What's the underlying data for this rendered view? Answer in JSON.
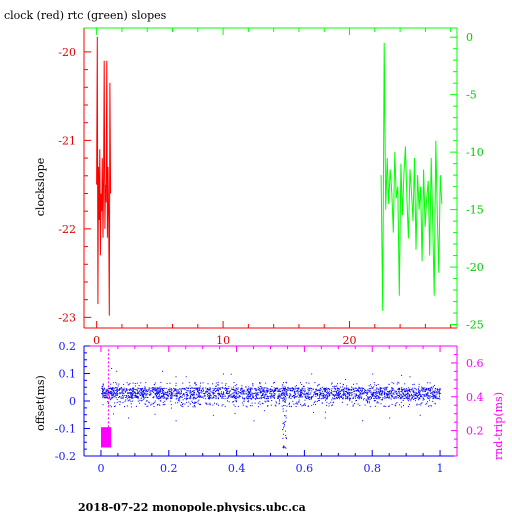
{
  "title": "clock (red) rtc (green) slopes",
  "footer": "2018-07-22  monopole.physics.ubc.ca",
  "colors": {
    "clock": "#ff0000",
    "rtc": "#00ff00",
    "offset": "#0000ff",
    "rndtrip": "#ff00ff",
    "frame_top_left": "#ff0000",
    "frame_top_right": "#00ff00",
    "frame_bottom_left": "#0000ff",
    "frame_bottom_right": "#ff00ff"
  },
  "chart_data": [
    {
      "id": "slopes",
      "type": "line",
      "title": "clock (red) rtc (green) slopes",
      "ylabel": "clockslope",
      "xlim": [
        -1,
        28.5
      ],
      "ylim": [
        -23.12,
        -19.73
      ],
      "y2lim": [
        -25.3,
        0.8
      ],
      "xticks": [
        "0",
        "10",
        "20"
      ],
      "yticks": [
        "-20",
        "-21",
        "-22",
        "-23"
      ],
      "y2ticks": [
        "0",
        "-5",
        "-10",
        "-15",
        "-20",
        "-25"
      ],
      "grid": false,
      "series": [
        {
          "name": "clock",
          "axis": "left",
          "x": [
            0.0,
            0.05,
            0.1,
            0.15,
            0.2,
            0.25,
            0.3,
            0.35,
            0.4,
            0.45,
            0.5,
            0.55,
            0.6,
            0.65,
            0.7,
            0.75,
            0.8,
            0.85,
            0.9,
            0.95,
            1.0,
            1.05,
            1.1
          ],
          "y": [
            -21.5,
            -19.83,
            -22.85,
            -21.3,
            -21.9,
            -21.1,
            -22.3,
            -21.6,
            -21.8,
            -21.2,
            -22.1,
            -21.4,
            -20.1,
            -22.0,
            -21.5,
            -21.7,
            -20.1,
            -22.1,
            -21.3,
            -21.9,
            -22.98,
            -20.35,
            -21.6
          ]
        },
        {
          "name": "rtc",
          "axis": "right",
          "x": [
            22.5,
            22.62,
            22.74,
            22.86,
            22.98,
            23.1,
            23.22,
            23.34,
            23.46,
            23.58,
            23.7,
            23.82,
            23.94,
            24.06,
            24.18,
            24.3,
            24.42,
            24.54,
            24.66,
            24.78,
            24.9,
            25.02,
            25.14,
            25.26,
            25.38,
            25.5,
            25.62,
            25.74,
            25.86,
            25.98,
            26.1,
            26.22,
            26.34,
            26.46,
            26.58,
            26.7,
            26.82,
            26.94,
            27.06,
            27.18,
            27.3
          ],
          "y": [
            -12.0,
            -23.8,
            -0.5,
            -15.0,
            -10.5,
            -14.5,
            -11.5,
            -13.5,
            -17.0,
            -10.0,
            -14.0,
            -13.0,
            -22.5,
            -11.0,
            -15.5,
            -12.0,
            -9.5,
            -14.0,
            -17.5,
            -11.5,
            -13.5,
            -16.0,
            -10.5,
            -18.5,
            -12.0,
            -15.0,
            -13.0,
            -19.5,
            -11.5,
            -16.5,
            -14.0,
            -12.5,
            -19.0,
            -10.5,
            -16.0,
            -22.5,
            -9.0,
            -15.5,
            -20.5,
            -12.0,
            -14.5
          ]
        }
      ]
    },
    {
      "id": "offset",
      "type": "scatter",
      "ylabel": "offset(ms)",
      "y2label": "rnd-trip(ms)",
      "xlim": [
        -0.05,
        1.05
      ],
      "ylim": [
        -0.2,
        0.2
      ],
      "y2lim": [
        0.05,
        0.7
      ],
      "xticks": [
        "0",
        "0.2",
        "0.4",
        "0.6",
        "0.8",
        "1"
      ],
      "yticks": [
        "0.2",
        "0.1",
        "0",
        "-0.1",
        "-0.2"
      ],
      "y2ticks": [
        "0.6",
        "0.4",
        "0.2"
      ],
      "grid": false,
      "series": [
        {
          "name": "offset",
          "axis": "left",
          "x_range": [
            0.0,
            1.0
          ],
          "band": [
            0.01,
            0.05
          ],
          "scatter_min": -0.05,
          "scatter_max": 0.1,
          "dip": {
            "x": 0.54,
            "min": -0.17,
            "max": 0.07
          },
          "markers": [
            {
              "x": 0.03,
              "y": 0.12
            },
            {
              "x": 0.045,
              "y": 0.11
            },
            {
              "x": 0.08,
              "y": -0.06
            },
            {
              "x": 0.18,
              "y": 0.11
            },
            {
              "x": 0.22,
              "y": -0.07
            },
            {
              "x": 0.25,
              "y": 0.09
            },
            {
              "x": 0.33,
              "y": -0.05
            },
            {
              "x": 0.36,
              "y": 0.1
            },
            {
              "x": 0.45,
              "y": -0.07
            },
            {
              "x": 0.62,
              "y": 0.1
            },
            {
              "x": 0.66,
              "y": -0.06
            },
            {
              "x": 0.72,
              "y": 0.08
            },
            {
              "x": 0.77,
              "y": -0.07
            },
            {
              "x": 0.8,
              "y": 0.1
            },
            {
              "x": 0.85,
              "y": -0.06
            },
            {
              "x": 0.91,
              "y": 0.09
            },
            {
              "x": 0.94,
              "y": -0.05
            }
          ]
        },
        {
          "name": "rnd-trip",
          "axis": "right",
          "x_range": [
            0.0,
            0.03
          ],
          "y_range": [
            0.1,
            0.22
          ],
          "spike": {
            "x": 0.022,
            "min": 0.2,
            "max": 0.68
          }
        }
      ]
    }
  ]
}
